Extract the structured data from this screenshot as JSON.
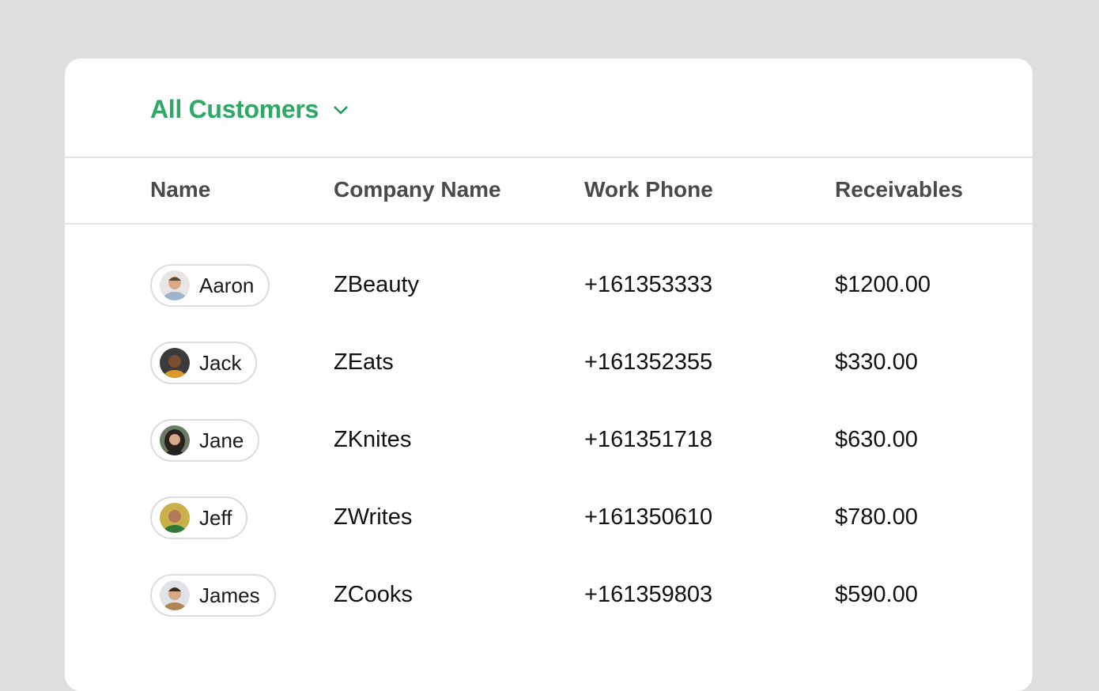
{
  "header": {
    "title": "All Customers",
    "dropdown_icon": "chevron-down-icon",
    "accent": "#2fa866"
  },
  "columns": [
    "Name",
    "Company Name",
    "Work Phone",
    "Receivables"
  ],
  "rows": [
    {
      "name": "Aaron",
      "company": "ZBeauty",
      "phone": "+161353333",
      "receivables": "$1200.00"
    },
    {
      "name": "Jack",
      "company": "ZEats",
      "phone": "+161352355",
      "receivables": "$330.00"
    },
    {
      "name": "Jane",
      "company": "ZKnites",
      "phone": "+161351718",
      "receivables": "$630.00"
    },
    {
      "name": "Jeff",
      "company": "ZWrites",
      "phone": "+161350610",
      "receivables": "$780.00"
    },
    {
      "name": "James",
      "company": "ZCooks",
      "phone": "+161359803",
      "receivables": "$590.00"
    }
  ]
}
